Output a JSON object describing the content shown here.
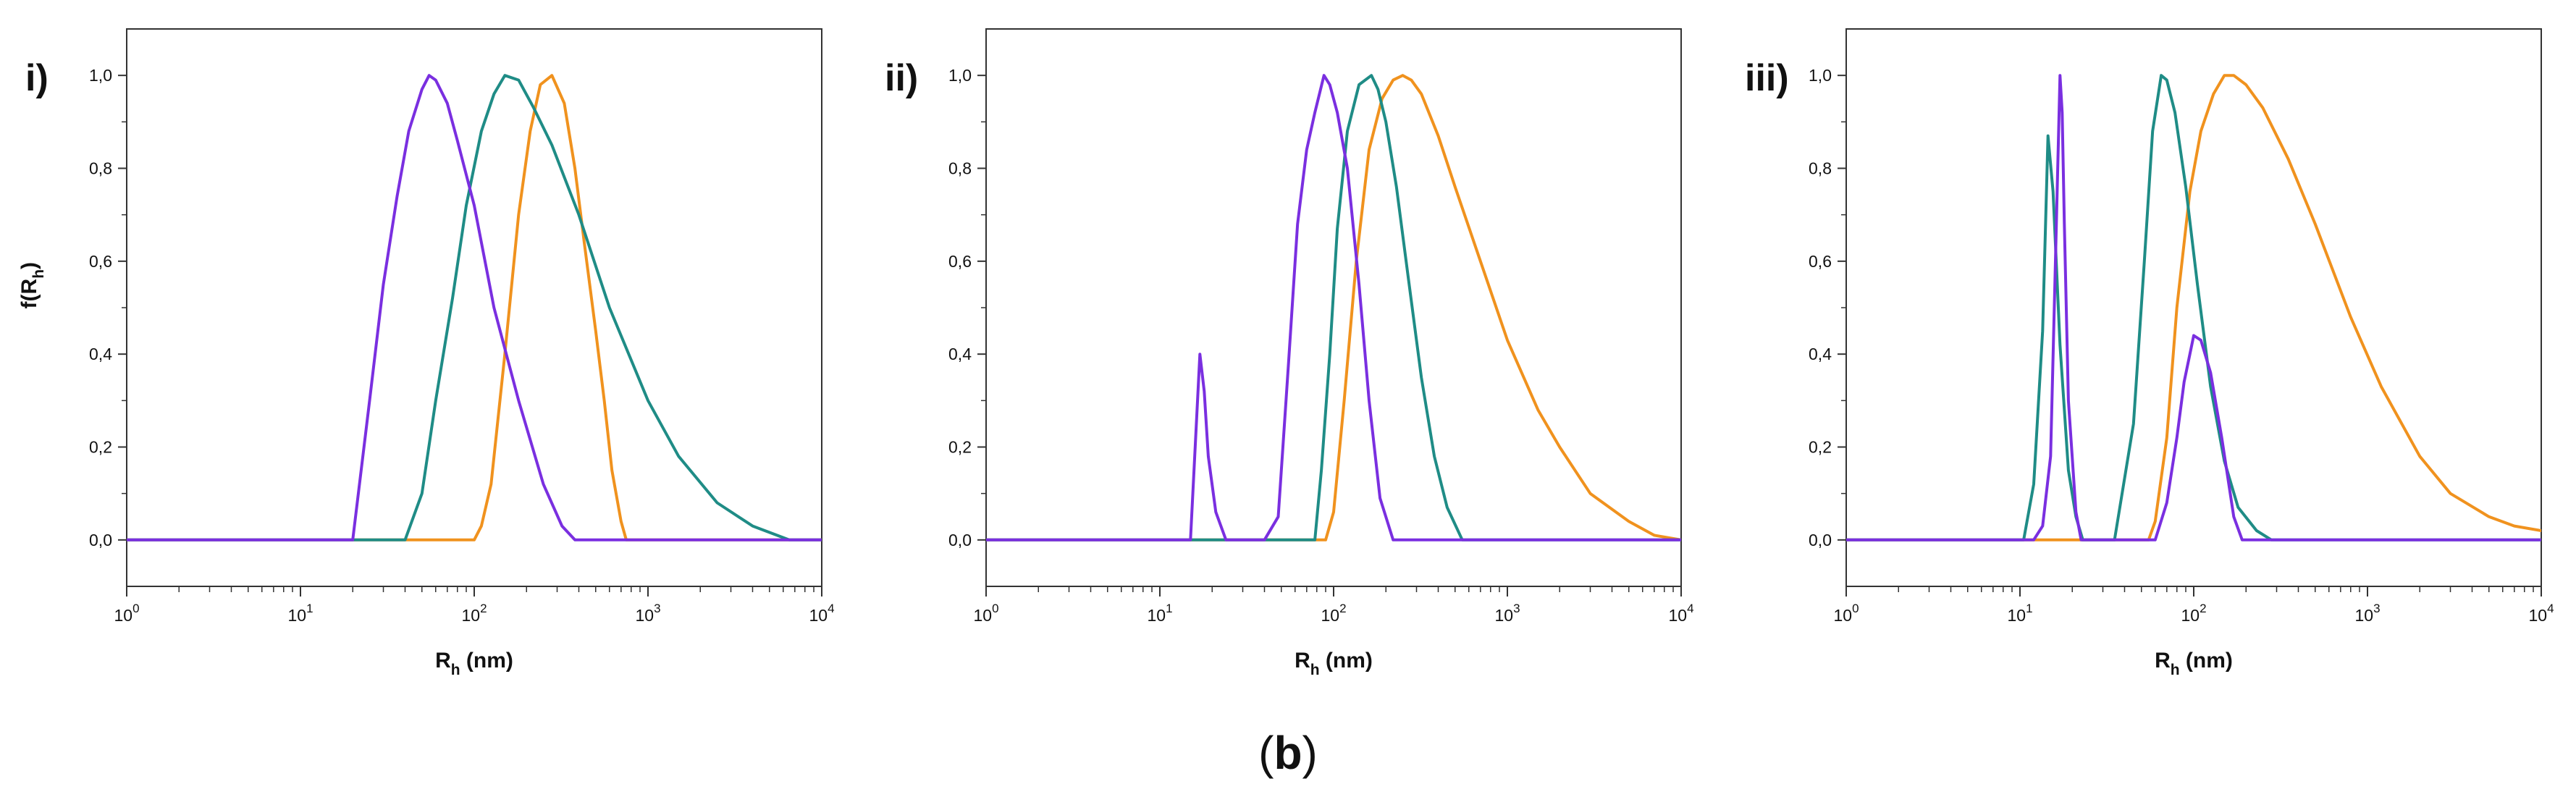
{
  "figure_caption": {
    "open": "(",
    "letter": "b",
    "close": ")"
  },
  "colors": {
    "purple": "#7a2fe0",
    "teal": "#1f8c86",
    "orange": "#f0921e",
    "axis": "#333333"
  },
  "chart_data": [
    {
      "type": "line",
      "panel_label": "i)",
      "xscale": "log",
      "xlim": [
        1,
        10000
      ],
      "ylim": [
        -0.1,
        1.1
      ],
      "xticks": [
        {
          "value": 1,
          "base": "10",
          "exp": "0"
        },
        {
          "value": 10,
          "base": "10",
          "exp": "1"
        },
        {
          "value": 100,
          "base": "10",
          "exp": "2"
        },
        {
          "value": 1000,
          "base": "10",
          "exp": "3"
        },
        {
          "value": 10000,
          "base": "10",
          "exp": "4"
        }
      ],
      "yticks": [
        {
          "value": 0.0,
          "label": "0,0"
        },
        {
          "value": 0.2,
          "label": "0,2"
        },
        {
          "value": 0.4,
          "label": "0,4"
        },
        {
          "value": 0.6,
          "label": "0,6"
        },
        {
          "value": 0.8,
          "label": "0,8"
        },
        {
          "value": 1.0,
          "label": "1,0"
        }
      ],
      "xlabel": {
        "main": "R",
        "sub": "h",
        "rest": " (nm)"
      },
      "ylabel": {
        "main": "f(R",
        "sub": "h",
        "rest": ")"
      },
      "series": [
        {
          "color": "orange",
          "x": [
            1,
            100,
            110,
            125,
            150,
            180,
            210,
            240,
            280,
            330,
            380,
            430,
            500,
            560,
            620,
            700,
            750,
            10000
          ],
          "y": [
            0,
            0,
            0.03,
            0.12,
            0.4,
            0.7,
            0.88,
            0.98,
            1.0,
            0.94,
            0.8,
            0.64,
            0.45,
            0.3,
            0.15,
            0.04,
            0,
            0
          ]
        },
        {
          "color": "teal",
          "x": [
            1,
            40,
            50,
            60,
            75,
            90,
            110,
            130,
            150,
            180,
            220,
            280,
            400,
            600,
            1000,
            1500,
            2500,
            4000,
            6500,
            10000
          ],
          "y": [
            0,
            0,
            0.1,
            0.3,
            0.52,
            0.72,
            0.88,
            0.96,
            1.0,
            0.99,
            0.93,
            0.85,
            0.7,
            0.5,
            0.3,
            0.18,
            0.08,
            0.03,
            0,
            0
          ]
        },
        {
          "color": "purple",
          "x": [
            1,
            20,
            25,
            30,
            36,
            42,
            50,
            55,
            60,
            70,
            80,
            100,
            130,
            180,
            250,
            320,
            380,
            10000
          ],
          "y": [
            0,
            0,
            0.3,
            0.55,
            0.74,
            0.88,
            0.97,
            1.0,
            0.99,
            0.94,
            0.86,
            0.72,
            0.5,
            0.3,
            0.12,
            0.03,
            0,
            0
          ]
        }
      ]
    },
    {
      "type": "line",
      "panel_label": "ii)",
      "xscale": "log",
      "xlim": [
        1,
        10000
      ],
      "ylim": [
        -0.1,
        1.1
      ],
      "xticks": [
        {
          "value": 1,
          "base": "10",
          "exp": "0"
        },
        {
          "value": 10,
          "base": "10",
          "exp": "1"
        },
        {
          "value": 100,
          "base": "10",
          "exp": "2"
        },
        {
          "value": 1000,
          "base": "10",
          "exp": "3"
        },
        {
          "value": 10000,
          "base": "10",
          "exp": "4"
        }
      ],
      "yticks": [
        {
          "value": 0.0,
          "label": "0,0"
        },
        {
          "value": 0.2,
          "label": "0,2"
        },
        {
          "value": 0.4,
          "label": "0,4"
        },
        {
          "value": 0.6,
          "label": "0,6"
        },
        {
          "value": 0.8,
          "label": "0,8"
        },
        {
          "value": 1.0,
          "label": "1,0"
        }
      ],
      "xlabel": {
        "main": "R",
        "sub": "h",
        "rest": " (nm)"
      },
      "ylabel": {
        "main": "",
        "sub": "",
        "rest": ""
      },
      "series": [
        {
          "color": "orange",
          "x": [
            1,
            90,
            100,
            115,
            135,
            160,
            190,
            220,
            250,
            280,
            320,
            400,
            500,
            700,
            1000,
            1500,
            2000,
            3000,
            5000,
            7000,
            10000
          ],
          "y": [
            0,
            0,
            0.06,
            0.3,
            0.6,
            0.84,
            0.95,
            0.99,
            1.0,
            0.99,
            0.96,
            0.87,
            0.76,
            0.6,
            0.43,
            0.28,
            0.2,
            0.1,
            0.04,
            0.01,
            0
          ]
        },
        {
          "color": "teal",
          "x": [
            1,
            78,
            85,
            95,
            105,
            120,
            140,
            165,
            180,
            200,
            230,
            270,
            320,
            380,
            450,
            550,
            10000
          ],
          "y": [
            0,
            0,
            0.15,
            0.4,
            0.67,
            0.88,
            0.98,
            1.0,
            0.97,
            0.9,
            0.76,
            0.56,
            0.35,
            0.18,
            0.07,
            0,
            0
          ]
        },
        {
          "color": "purple",
          "x": [
            1,
            15,
            17,
            18,
            19,
            21,
            24,
            40,
            48,
            55,
            62,
            70,
            78,
            88,
            95,
            105,
            120,
            140,
            160,
            185,
            220,
            10000
          ],
          "y": [
            0,
            0,
            0.4,
            0.32,
            0.18,
            0.06,
            0,
            0,
            0.05,
            0.38,
            0.68,
            0.84,
            0.92,
            1.0,
            0.98,
            0.92,
            0.8,
            0.55,
            0.3,
            0.09,
            0,
            0
          ]
        }
      ]
    },
    {
      "type": "line",
      "panel_label": "iii)",
      "xscale": "log",
      "xlim": [
        1,
        10000
      ],
      "ylim": [
        -0.1,
        1.1
      ],
      "xticks": [
        {
          "value": 1,
          "base": "10",
          "exp": "0"
        },
        {
          "value": 10,
          "base": "10",
          "exp": "1"
        },
        {
          "value": 100,
          "base": "10",
          "exp": "2"
        },
        {
          "value": 1000,
          "base": "10",
          "exp": "3"
        },
        {
          "value": 10000,
          "base": "10",
          "exp": "4"
        }
      ],
      "yticks": [
        {
          "value": 0.0,
          "label": "0,0"
        },
        {
          "value": 0.2,
          "label": "0,2"
        },
        {
          "value": 0.4,
          "label": "0,4"
        },
        {
          "value": 0.6,
          "label": "0,6"
        },
        {
          "value": 0.8,
          "label": "0,8"
        },
        {
          "value": 1.0,
          "label": "1,0"
        }
      ],
      "xlabel": {
        "main": "R",
        "sub": "h",
        "rest": " (nm)"
      },
      "ylabel": {
        "main": "",
        "sub": "",
        "rest": ""
      },
      "series": [
        {
          "color": "orange",
          "x": [
            1,
            55,
            60,
            70,
            80,
            95,
            110,
            130,
            150,
            170,
            200,
            250,
            350,
            500,
            800,
            1200,
            2000,
            3000,
            5000,
            7000,
            10000
          ],
          "y": [
            0,
            0,
            0.04,
            0.22,
            0.5,
            0.75,
            0.88,
            0.96,
            1.0,
            1.0,
            0.98,
            0.93,
            0.82,
            0.68,
            0.48,
            0.33,
            0.18,
            0.1,
            0.05,
            0.03,
            0.02
          ]
        },
        {
          "color": "teal",
          "x": [
            1,
            10.5,
            12,
            13.5,
            14.5,
            15.5,
            17,
            19,
            21,
            23,
            35,
            45,
            52,
            58,
            65,
            70,
            78,
            90,
            105,
            125,
            150,
            180,
            230,
            280,
            10000
          ],
          "y": [
            0,
            0,
            0.12,
            0.45,
            0.87,
            0.75,
            0.42,
            0.15,
            0.05,
            0,
            0,
            0.25,
            0.6,
            0.88,
            1.0,
            0.99,
            0.92,
            0.76,
            0.55,
            0.33,
            0.17,
            0.07,
            0.02,
            0,
            0
          ]
        },
        {
          "color": "purple",
          "x": [
            1,
            12,
            13.5,
            15,
            16,
            17,
            17.5,
            18,
            19,
            21,
            22.5,
            60,
            70,
            80,
            88,
            95,
            100,
            110,
            125,
            145,
            170,
            190,
            10000
          ],
          "y": [
            0,
            0,
            0.03,
            0.18,
            0.6,
            1.0,
            0.92,
            0.68,
            0.3,
            0.06,
            0,
            0,
            0.08,
            0.22,
            0.34,
            0.4,
            0.44,
            0.43,
            0.36,
            0.22,
            0.05,
            0,
            0
          ]
        }
      ]
    }
  ]
}
